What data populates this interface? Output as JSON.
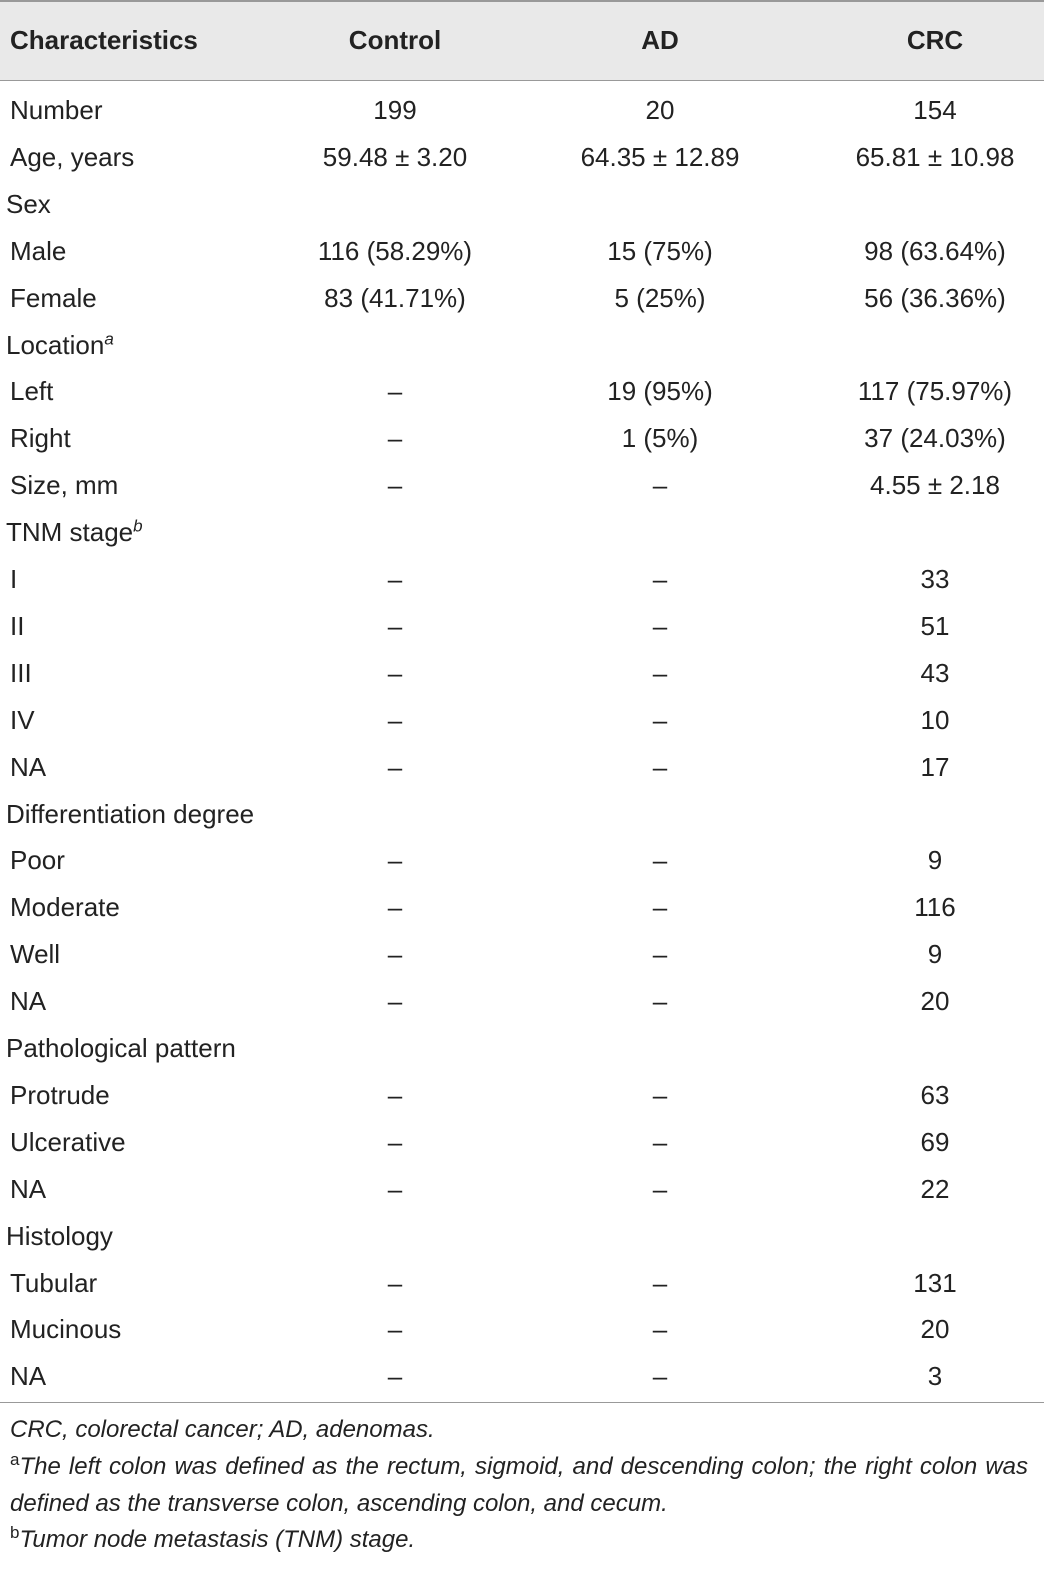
{
  "table": {
    "header": [
      "Characteristics",
      "Control",
      "AD",
      "CRC"
    ],
    "rows": [
      {
        "cells": [
          "Number",
          "199",
          "20",
          "154"
        ]
      },
      {
        "cells": [
          "Age, years",
          "59.48 ± 3.20",
          "64.35 ± 12.89",
          "65.81 ± 10.98"
        ]
      },
      {
        "section": "Sex"
      },
      {
        "cells": [
          "Male",
          "116 (58.29%)",
          "15 (75%)",
          "98 (63.64%)"
        ]
      },
      {
        "cells": [
          "Female",
          "83 (41.71%)",
          "5 (25%)",
          "56 (36.36%)"
        ]
      },
      {
        "section": "Location",
        "sup": "a"
      },
      {
        "cells": [
          "Left",
          "–",
          "19 (95%)",
          "117 (75.97%)"
        ]
      },
      {
        "cells": [
          "Right",
          "–",
          "1 (5%)",
          "37 (24.03%)"
        ]
      },
      {
        "cells": [
          "Size, mm",
          "–",
          "–",
          "4.55 ± 2.18"
        ]
      },
      {
        "section": "TNM stage",
        "sup": "b"
      },
      {
        "cells": [
          "I",
          "–",
          "–",
          "33"
        ]
      },
      {
        "cells": [
          "II",
          "–",
          "–",
          "51"
        ]
      },
      {
        "cells": [
          "III",
          "–",
          "–",
          "43"
        ]
      },
      {
        "cells": [
          "IV",
          "–",
          "–",
          "10"
        ]
      },
      {
        "cells": [
          "NA",
          "–",
          "–",
          "17"
        ]
      },
      {
        "section": "Differentiation degree"
      },
      {
        "cells": [
          "Poor",
          "–",
          "–",
          "9"
        ]
      },
      {
        "cells": [
          "Moderate",
          "–",
          "–",
          "116"
        ]
      },
      {
        "cells": [
          "Well",
          "–",
          "–",
          "9"
        ]
      },
      {
        "cells": [
          "NA",
          "–",
          "–",
          "20"
        ]
      },
      {
        "section": "Pathological pattern"
      },
      {
        "cells": [
          "Protrude",
          "–",
          "–",
          "63"
        ]
      },
      {
        "cells": [
          "Ulcerative",
          "–",
          "–",
          "69"
        ]
      },
      {
        "cells": [
          "NA",
          "–",
          "–",
          "22"
        ]
      },
      {
        "section": "Histology"
      },
      {
        "cells": [
          "Tubular",
          "–",
          "–",
          "131"
        ]
      },
      {
        "cells": [
          "Mucinous",
          "–",
          "–",
          "20"
        ]
      },
      {
        "cells": [
          "NA",
          "–",
          "–",
          "3"
        ]
      }
    ],
    "footnotes": [
      {
        "text": "CRC, colorectal cancer; AD, adenomas."
      },
      {
        "marker": "a",
        "text": "The left colon was defined as the rectum, sigmoid, and descending colon; the right colon was defined as the transverse colon, ascending colon, and cecum."
      },
      {
        "marker": "b",
        "text": "Tumor node metastasis (TNM) stage."
      }
    ]
  }
}
